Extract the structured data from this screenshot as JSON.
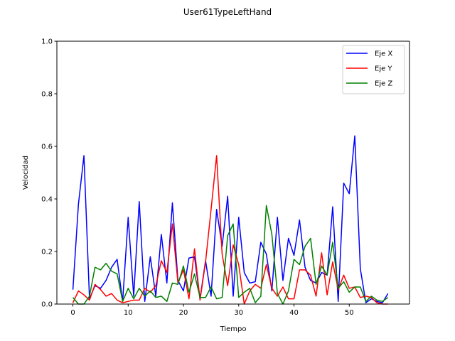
{
  "chart_data": {
    "type": "line",
    "title": "User61TypeLeftHand",
    "xlabel": "Tiempo",
    "ylabel": "Velocidad",
    "xlim": [
      -2.9,
      60.9
    ],
    "ylim": [
      0,
      1.0
    ],
    "xticks": [
      0,
      10,
      20,
      30,
      40,
      50
    ],
    "yticks": [
      0.0,
      0.2,
      0.4,
      0.6,
      0.8,
      1.0
    ],
    "ytick_labels": [
      "0.0",
      "0.2",
      "0.4",
      "0.6",
      "0.8",
      "1.0"
    ],
    "grid": false,
    "legend_position": "top-right",
    "x": [
      0,
      1,
      2,
      3,
      4,
      5,
      6,
      7,
      8,
      9,
      10,
      11,
      12,
      13,
      14,
      15,
      16,
      17,
      18,
      19,
      20,
      21,
      22,
      23,
      24,
      25,
      26,
      27,
      28,
      29,
      30,
      31,
      32,
      33,
      34,
      35,
      36,
      37,
      38,
      39,
      40,
      41,
      42,
      43,
      44,
      45,
      46,
      47,
      48,
      49,
      50,
      51,
      52,
      53,
      54,
      55,
      56,
      57
    ],
    "series": [
      {
        "name": "Eje X",
        "color": "#0000ff",
        "values": [
          0.055,
          0.38,
          0.565,
          0.02,
          0.07,
          0.06,
          0.09,
          0.14,
          0.17,
          0.01,
          0.33,
          0.03,
          0.39,
          0.01,
          0.18,
          0.03,
          0.265,
          0.08,
          0.385,
          0.09,
          0.05,
          0.175,
          0.18,
          0.02,
          0.165,
          0.03,
          0.36,
          0.22,
          0.41,
          0.03,
          0.33,
          0.12,
          0.08,
          0.085,
          0.235,
          0.19,
          0.05,
          0.33,
          0.09,
          0.25,
          0.185,
          0.32,
          0.14,
          0.09,
          0.08,
          0.12,
          0.11,
          0.37,
          0.01,
          0.46,
          0.42,
          0.64,
          0.135,
          0.005,
          0.02,
          0.01,
          0.005,
          0.04
        ]
      },
      {
        "name": "Eje Y",
        "color": "#ff0000",
        "values": [
          0.005,
          0.05,
          0.035,
          0.015,
          0.075,
          0.055,
          0.03,
          0.04,
          0.015,
          0.005,
          0.01,
          0.015,
          0.015,
          0.06,
          0.045,
          0.07,
          0.165,
          0.12,
          0.305,
          0.08,
          0.13,
          0.02,
          0.21,
          0.015,
          0.16,
          0.36,
          0.565,
          0.19,
          0.07,
          0.225,
          0.15,
          0.0,
          0.05,
          0.075,
          0.06,
          0.15,
          0.06,
          0.03,
          0.065,
          0.02,
          0.02,
          0.13,
          0.13,
          0.11,
          0.03,
          0.195,
          0.035,
          0.16,
          0.055,
          0.11,
          0.06,
          0.065,
          0.025,
          0.03,
          0.025,
          0.005,
          0.0,
          0.0
        ]
      },
      {
        "name": "Eje Z",
        "color": "#008000",
        "values": [
          0.025,
          0.0,
          0.0,
          0.03,
          0.14,
          0.13,
          0.155,
          0.125,
          0.115,
          0.01,
          0.06,
          0.02,
          0.06,
          0.03,
          0.05,
          0.025,
          0.03,
          0.01,
          0.08,
          0.075,
          0.145,
          0.045,
          0.115,
          0.025,
          0.025,
          0.065,
          0.02,
          0.025,
          0.26,
          0.305,
          0.025,
          0.045,
          0.06,
          0.005,
          0.03,
          0.375,
          0.265,
          0.04,
          0.0,
          0.05,
          0.17,
          0.15,
          0.22,
          0.25,
          0.075,
          0.145,
          0.11,
          0.235,
          0.06,
          0.085,
          0.045,
          0.065,
          0.065,
          0.01,
          0.03,
          0.015,
          0.01,
          0.025
        ]
      }
    ]
  }
}
